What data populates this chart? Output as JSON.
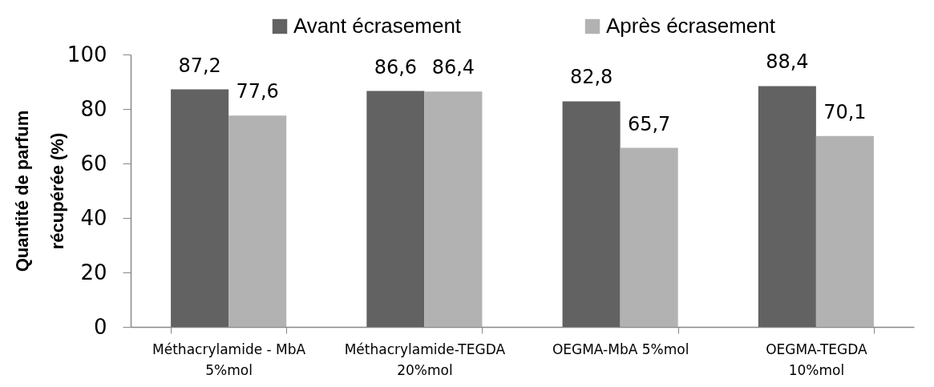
{
  "chart_data": {
    "type": "bar",
    "ylabel": "Quantité de parfum récupérée (%)",
    "categories": [
      "Méthacrylamide - MbA 5%mol",
      "Méthacrylamide-TEGDA 20%mol",
      "OEGMA-MbA 5%mol",
      "OEGMA-TEGDA 10%mol"
    ],
    "series": [
      {
        "name": "Avant écrasement",
        "color": "#626262",
        "values": [
          87.2,
          86.6,
          82.8,
          88.4
        ],
        "value_labels": [
          "87,2",
          "86,6",
          "82,8",
          "88,4"
        ]
      },
      {
        "name": "Après écrasement",
        "color": "#b2b2b2",
        "values": [
          77.6,
          86.4,
          65.7,
          70.1
        ],
        "value_labels": [
          "77,6",
          "86,4",
          "65,7",
          "70,1"
        ]
      }
    ],
    "ylim": [
      0,
      100
    ],
    "yticks": [
      0,
      20,
      40,
      60,
      80,
      100
    ],
    "legend": "top"
  }
}
